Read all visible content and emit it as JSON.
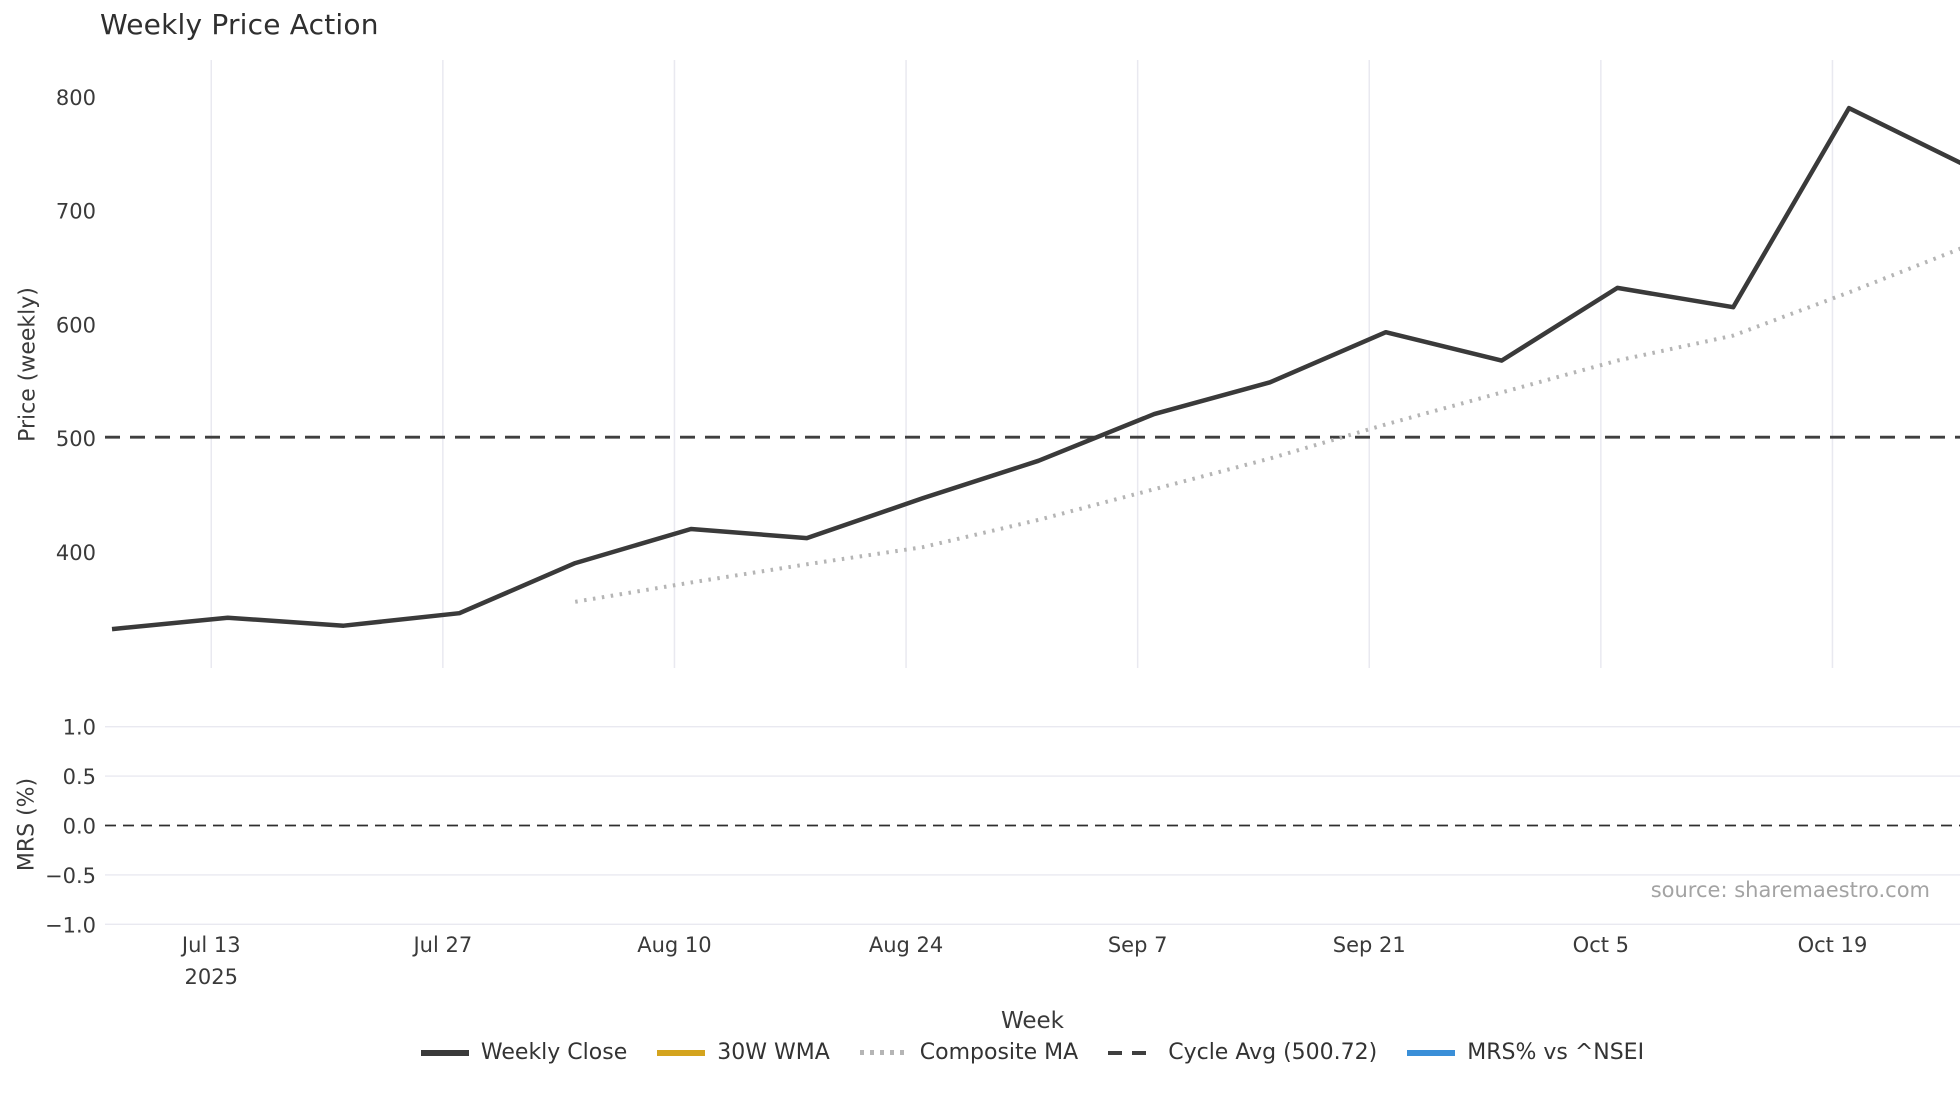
{
  "title": "Weekly Price Action",
  "source_credit": "source: sharemaestro.com",
  "colors": {
    "weekly_close": "#3a3a3a",
    "wma_30w": "#d4a41e",
    "composite_ma": "#b5b5b5",
    "cycle_avg": "#3f3f3f",
    "mrs_blue": "#3a8fd8",
    "gridline": "#e9e9f0",
    "zero_line": "#2f2f2f",
    "text": "#3a3a3a",
    "source_text": "#a3a3a3"
  },
  "chart_data": {
    "type": "line",
    "title": "Weekly Price Action",
    "xlabel": "Week",
    "x_tick_labels": [
      "Jul 13",
      "Jul 27",
      "Aug 10",
      "Aug 24",
      "Sep 7",
      "Sep 21",
      "Oct 5",
      "Oct 19"
    ],
    "x_first_tick_sublabel": "2025",
    "weeks": [
      "Jul 7",
      "Jul 14",
      "Jul 21",
      "Jul 28",
      "Aug 4",
      "Aug 11",
      "Aug 18",
      "Aug 25",
      "Sep 1",
      "Sep 8",
      "Sep 15",
      "Sep 22",
      "Sep 29",
      "Oct 6",
      "Oct 13",
      "Oct 20",
      "Oct 27"
    ],
    "panels": [
      {
        "name": "price",
        "ylabel": "Price (weekly)",
        "yticks": [
          400,
          500,
          600,
          700,
          800
        ],
        "ylim": [
          300,
          832
        ],
        "grid": "vertical-only",
        "series": [
          {
            "name": "Weekly Close",
            "style": "solid",
            "color": "#3a3a3a",
            "values": [
              332,
              342,
              335,
              346,
              390,
              420,
              412,
              447,
              480,
              521,
              549,
              593,
              568,
              632,
              615,
              790,
              740
            ]
          },
          {
            "name": "30W WMA",
            "style": "solid",
            "color": "#d4a41e",
            "values": []
          },
          {
            "name": "Composite MA",
            "style": "dotted",
            "color": "#b5b5b5",
            "values": [
              null,
              null,
              null,
              null,
              356,
              373,
              389,
              404,
              428,
              455,
              482,
              512,
              540,
              568,
              590,
              628,
              668
            ]
          },
          {
            "name": "Cycle Avg (500.72)",
            "style": "dashed-horizontal",
            "color": "#3f3f3f",
            "value": 500.72
          }
        ]
      },
      {
        "name": "mrs",
        "ylabel": "MRS (%)",
        "yticks": [
          -1.0,
          -0.5,
          0.0,
          0.5,
          1.0
        ],
        "ylim": [
          -1.1,
          1.1
        ],
        "grid": "horizontal-only",
        "zero_line_dashed": true,
        "series": [
          {
            "name": "MRS% vs ^NSEI",
            "style": "solid",
            "color": "#3a8fd8",
            "values": []
          }
        ]
      }
    ],
    "legend": {
      "position": "bottom-center",
      "items": [
        {
          "label": "Weekly Close",
          "color": "#3a3a3a",
          "style": "solid"
        },
        {
          "label": "30W WMA",
          "color": "#d4a41e",
          "style": "solid"
        },
        {
          "label": "Composite MA",
          "color": "#b5b5b5",
          "style": "dotted"
        },
        {
          "label": "Cycle Avg (500.72)",
          "color": "#3f3f3f",
          "style": "dashed"
        },
        {
          "label": "MRS% vs ^NSEI",
          "color": "#3a8fd8",
          "style": "solid"
        }
      ]
    }
  }
}
